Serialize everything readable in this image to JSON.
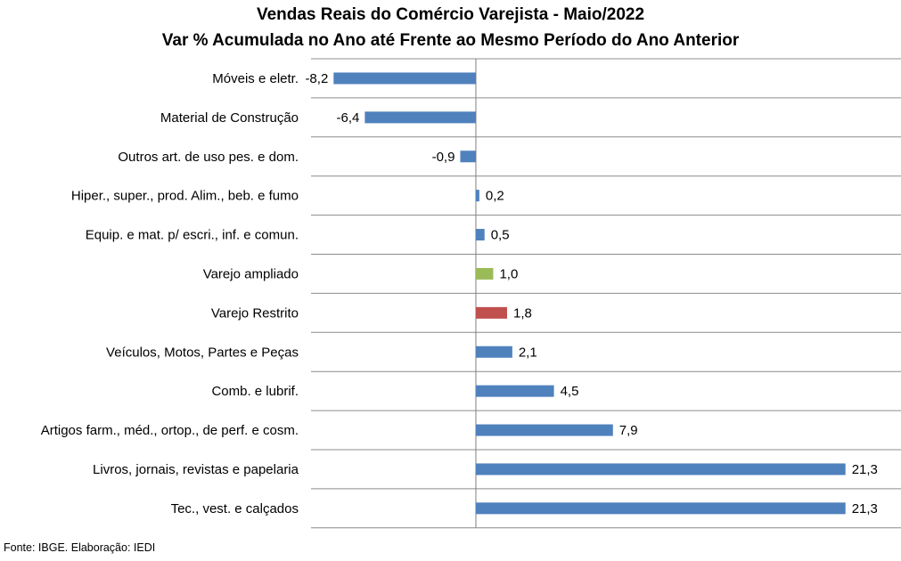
{
  "chart_data": {
    "type": "bar",
    "orientation": "horizontal",
    "title": "Vendas Reais do Comércio Varejista - Maio/2022",
    "subtitle": "Var % Acumulada no Ano até Frente ao Mesmo Período do Ano Anterior",
    "categories": [
      "Móveis e eletr.",
      "Material de Construção",
      "Outros art. de uso pes. e dom.",
      "Hiper., super., prod. Alim., beb. e fumo",
      "Equip. e mat. p/ escri., inf. e comun.",
      "Varejo ampliado",
      "Varejo Restrito",
      "Veículos, Motos, Partes e Peças",
      "Comb. e lubrif.",
      "Artigos farm., méd., ortop., de perf. e cosm.",
      "Livros, jornais, revistas e papelaria",
      "Tec., vest. e calçados"
    ],
    "values": [
      -8.2,
      -6.4,
      -0.9,
      0.2,
      0.5,
      1.0,
      1.8,
      2.1,
      4.5,
      7.9,
      21.3,
      21.3
    ],
    "value_labels": [
      "-8,2",
      "-6,4",
      "-0,9",
      "0,2",
      "0,5",
      "1,0",
      "1,8",
      "2,1",
      "4,5",
      "7,9",
      "21,3",
      "21,3"
    ],
    "bar_colors": [
      "#4f81bd",
      "#4f81bd",
      "#4f81bd",
      "#4f81bd",
      "#4f81bd",
      "#9bbb59",
      "#c0504d",
      "#4f81bd",
      "#4f81bd",
      "#4f81bd",
      "#4f81bd",
      "#4f81bd"
    ],
    "xlim": [
      -9.5,
      24.5
    ],
    "grid": true,
    "legend": "none"
  },
  "footer": {
    "source": "Fonte: IBGE. Elaboração: IEDI"
  }
}
